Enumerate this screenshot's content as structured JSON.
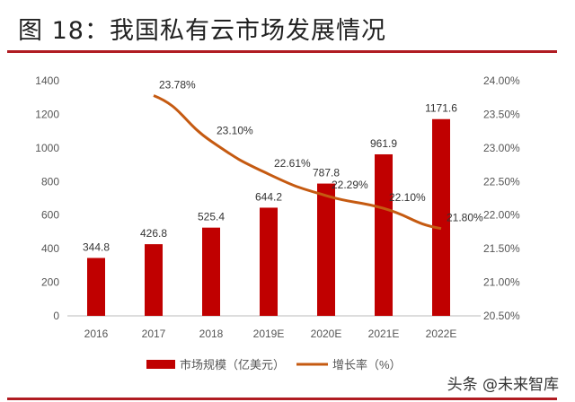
{
  "title": "图 18：我国私有云市场发展情况",
  "watermark": "头条 @未来智库",
  "colors": {
    "bar": "#c00000",
    "line": "#c55a11",
    "rule": "#b01c22"
  },
  "chart_data": {
    "type": "bar+line",
    "categories": [
      "2016",
      "2017",
      "2018",
      "2019E",
      "2020E",
      "2021E",
      "2022E"
    ],
    "series": [
      {
        "name": "市场规模（亿美元）",
        "type": "bar",
        "axis": "left",
        "values": [
          344.8,
          426.8,
          525.4,
          644.2,
          787.8,
          961.9,
          1171.6
        ],
        "labels": [
          "344.8",
          "426.8",
          "525.4",
          "644.2",
          "787.8",
          "961.9",
          "1171.6"
        ]
      },
      {
        "name": "增长率（%）",
        "type": "line",
        "axis": "right",
        "values": [
          null,
          23.78,
          23.1,
          22.61,
          22.29,
          22.1,
          21.8
        ],
        "labels": [
          "",
          "23.78%",
          "23.10%",
          "22.61%",
          "22.29%",
          "22.10%",
          "21.80%"
        ]
      }
    ],
    "left_axis": {
      "range": [
        0,
        1400
      ],
      "ticks": [
        "0",
        "200",
        "400",
        "600",
        "800",
        "1000",
        "1200",
        "1400"
      ]
    },
    "right_axis": {
      "range": [
        20.5,
        24.0
      ],
      "ticks": [
        "20.50%",
        "21.00%",
        "21.50%",
        "22.00%",
        "22.50%",
        "23.00%",
        "23.50%",
        "24.00%"
      ]
    },
    "legend": "bottom",
    "grid": false
  }
}
